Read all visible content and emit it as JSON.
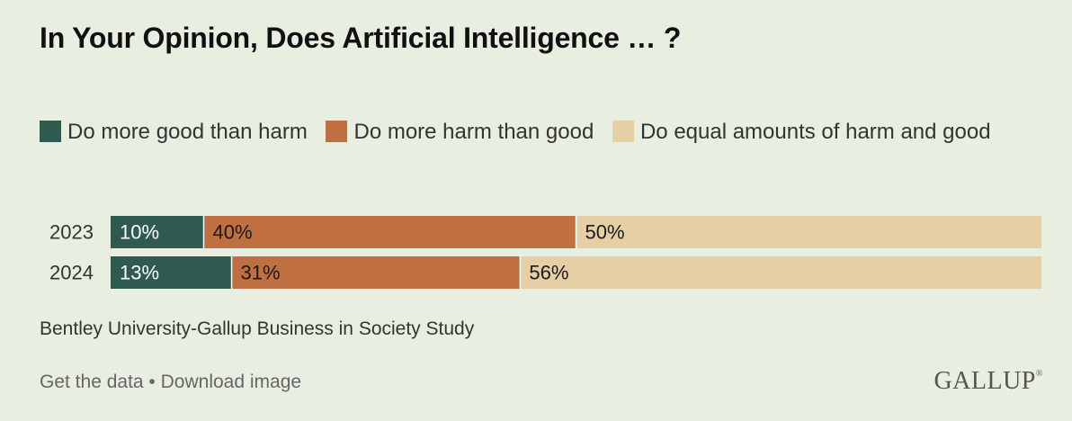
{
  "title": "In Your Opinion, Does Artificial Intelligence … ?",
  "legend": [
    {
      "label": "Do more good than harm",
      "color": "#2f5a4f"
    },
    {
      "label": "Do more harm than good",
      "color": "#bf6f40"
    },
    {
      "label": "Do equal amounts of harm and good",
      "color": "#e6cfa5"
    }
  ],
  "chart_data": {
    "type": "bar",
    "orientation": "horizontal",
    "stacked": true,
    "categories": [
      "2023",
      "2024"
    ],
    "series": [
      {
        "name": "Do more good than harm",
        "values": [
          10,
          13
        ],
        "labels": [
          "10%",
          "13%"
        ],
        "color": "#2f5a4f",
        "label_color": "#ffffff"
      },
      {
        "name": "Do more harm than good",
        "values": [
          40,
          31
        ],
        "labels": [
          "40%",
          "31%"
        ],
        "color": "#bf6f40",
        "label_color": "#1a1a1a"
      },
      {
        "name": "Do equal amounts of harm and good",
        "values": [
          50,
          56
        ],
        "labels": [
          "50%",
          "56%"
        ],
        "color": "#e6cfa5",
        "label_color": "#1a1a1a"
      }
    ],
    "xlim": [
      0,
      100
    ],
    "grid": false,
    "legend_position": "top"
  },
  "source": "Bentley University-Gallup Business in Society Study",
  "footer": {
    "get_data": "Get the data",
    "separator": " • ",
    "download": "Download image"
  },
  "logo": {
    "text": "GALLUP",
    "mark": "®"
  }
}
